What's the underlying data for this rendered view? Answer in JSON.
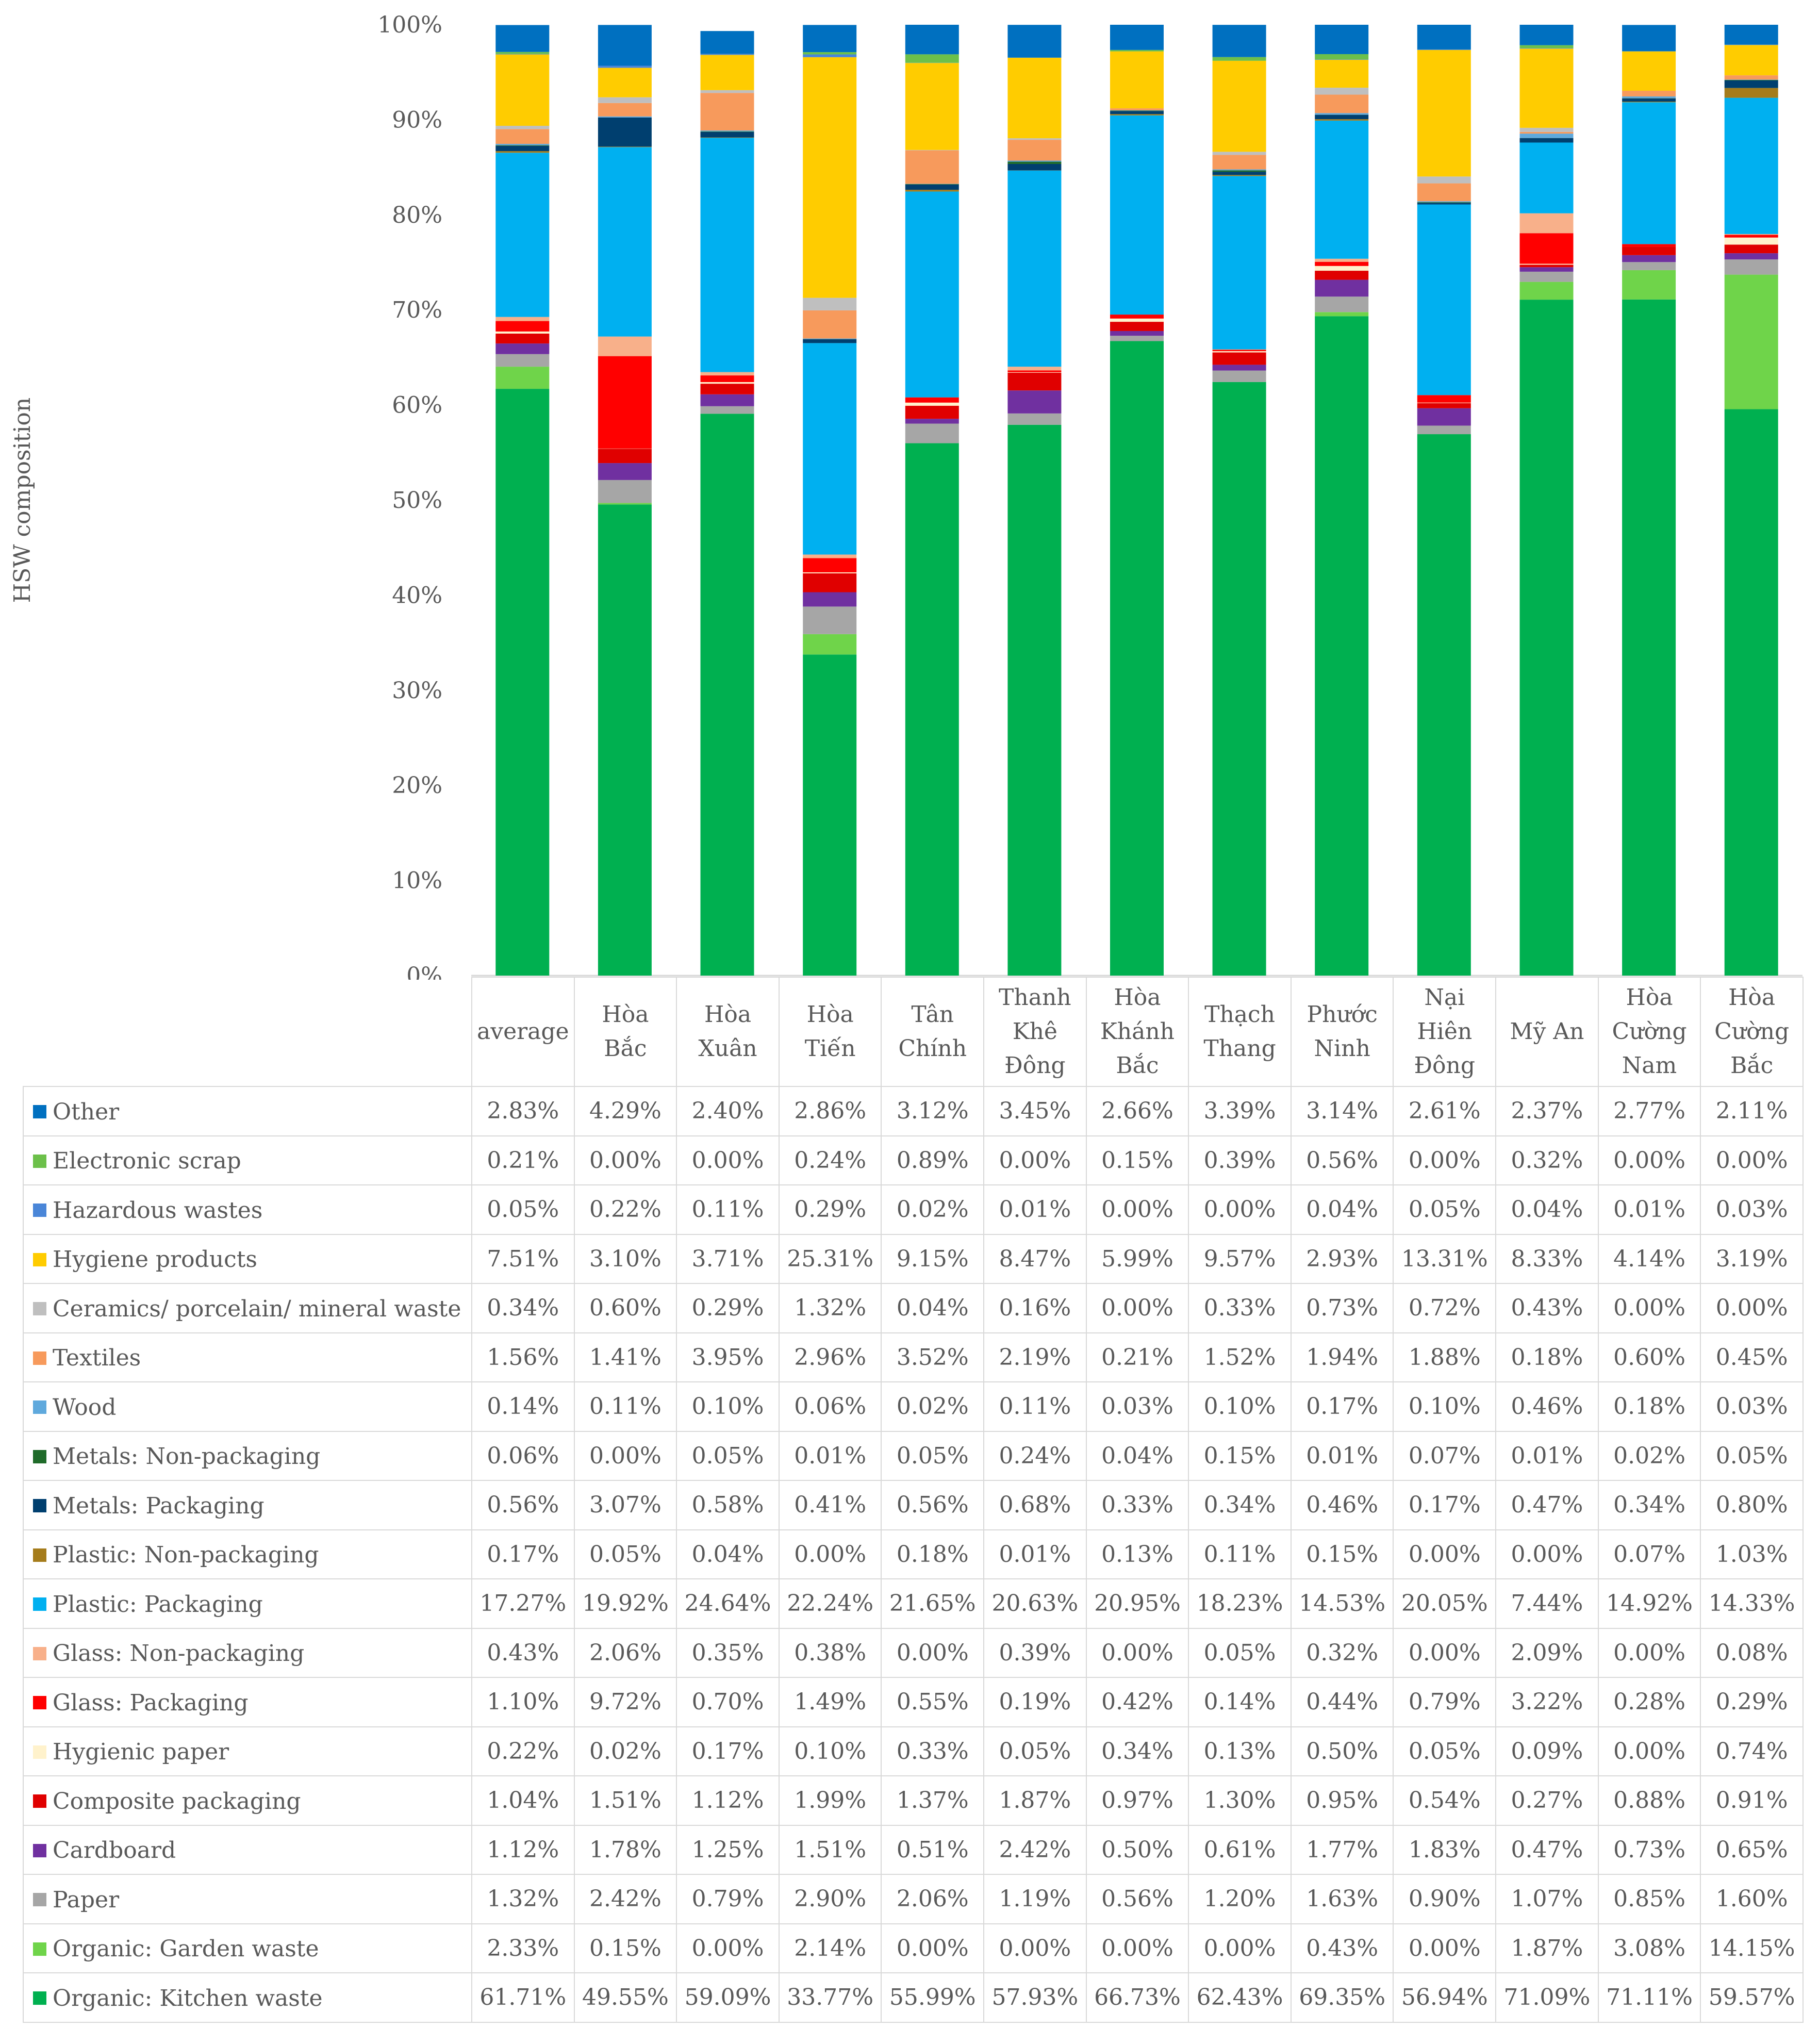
{
  "chart_data": {
    "type": "bar",
    "stacked": true,
    "ylabel": "HSW composition",
    "ylim": [
      0,
      100
    ],
    "yticks": [
      "0%",
      "10%",
      "20%",
      "30%",
      "40%",
      "50%",
      "60%",
      "70%",
      "80%",
      "90%",
      "100%"
    ],
    "categories": [
      [
        "average"
      ],
      [
        "Hòa",
        "Bắc"
      ],
      [
        "Hòa",
        "Xuân"
      ],
      [
        "Hòa",
        "Tiến"
      ],
      [
        "Tân",
        "Chính"
      ],
      [
        "Thanh",
        "Khê",
        "Đông"
      ],
      [
        "Hòa",
        "Khánh",
        "Bắc"
      ],
      [
        "Thạch",
        "Thang"
      ],
      [
        "Phước",
        "Ninh"
      ],
      [
        "Nại",
        "Hiên",
        "Đông"
      ],
      [
        "Mỹ An"
      ],
      [
        "Hòa",
        "Cường",
        "Nam"
      ],
      [
        "Hòa",
        "Cường",
        "Bắc"
      ]
    ],
    "series": [
      {
        "name": "Organic: Kitchen waste",
        "color": "#00b050",
        "values": [
          61.71,
          49.55,
          59.09,
          33.77,
          55.99,
          57.93,
          66.73,
          62.43,
          69.35,
          56.94,
          71.09,
          71.11,
          59.57
        ],
        "labels": [
          "61.71%",
          "49.55%",
          "59.09%",
          "33.77%",
          "55.99%",
          "57.93%",
          "66.73%",
          "62.43%",
          "69.35%",
          "56.94%",
          "71.09%",
          "71.11%",
          "59.57%"
        ]
      },
      {
        "name": "Organic: Garden waste",
        "color": "#6fd44a",
        "values": [
          2.33,
          0.15,
          0.0,
          2.14,
          0.0,
          0.0,
          0.0,
          0.0,
          0.43,
          0.0,
          1.87,
          3.08,
          14.15
        ],
        "labels": [
          "2.33%",
          "0.15%",
          "0.00%",
          "2.14%",
          "0.00%",
          "0.00%",
          "0.00%",
          "0.00%",
          "0.43%",
          "0.00%",
          "1.87%",
          "3.08%",
          "14.15%"
        ]
      },
      {
        "name": "Paper",
        "color": "#a6a6a6",
        "values": [
          1.32,
          2.42,
          0.79,
          2.9,
          2.06,
          1.19,
          0.56,
          1.2,
          1.63,
          0.9,
          1.07,
          0.85,
          1.6
        ],
        "labels": [
          "1.32%",
          "2.42%",
          "0.79%",
          "2.90%",
          "2.06%",
          "1.19%",
          "0.56%",
          "1.20%",
          "1.63%",
          "0.90%",
          "1.07%",
          "0.85%",
          "1.60%"
        ]
      },
      {
        "name": "Cardboard",
        "color": "#7030a0",
        "values": [
          1.12,
          1.78,
          1.25,
          1.51,
          0.51,
          2.42,
          0.5,
          0.61,
          1.77,
          1.83,
          0.47,
          0.73,
          0.65
        ],
        "labels": [
          "1.12%",
          "1.78%",
          "1.25%",
          "1.51%",
          "0.51%",
          "2.42%",
          "0.50%",
          "0.61%",
          "1.77%",
          "1.83%",
          "0.47%",
          "0.73%",
          "0.65%"
        ]
      },
      {
        "name": "Composite packaging",
        "color": "#e00000",
        "values": [
          1.04,
          1.51,
          1.12,
          1.99,
          1.37,
          1.87,
          0.97,
          1.3,
          0.95,
          0.54,
          0.27,
          0.88,
          0.91
        ],
        "labels": [
          "1.04%",
          "1.51%",
          "1.12%",
          "1.99%",
          "1.37%",
          "1.87%",
          "0.97%",
          "1.30%",
          "0.95%",
          "0.54%",
          "0.27%",
          "0.88%",
          "0.91%"
        ]
      },
      {
        "name": "Hygienic paper",
        "color": "#fff2cc",
        "values": [
          0.22,
          0.02,
          0.17,
          0.1,
          0.33,
          0.05,
          0.34,
          0.13,
          0.5,
          0.05,
          0.09,
          0.0,
          0.74
        ],
        "labels": [
          "0.22%",
          "0.02%",
          "0.17%",
          "0.10%",
          "0.33%",
          "0.05%",
          "0.34%",
          "0.13%",
          "0.50%",
          "0.05%",
          "0.09%",
          "0.00%",
          "0.74%"
        ]
      },
      {
        "name": "Glass: Packaging",
        "color": "#ff0000",
        "values": [
          1.1,
          9.72,
          0.7,
          1.49,
          0.55,
          0.19,
          0.42,
          0.14,
          0.44,
          0.79,
          3.22,
          0.28,
          0.29
        ],
        "labels": [
          "1.10%",
          "9.72%",
          "0.70%",
          "1.49%",
          "0.55%",
          "0.19%",
          "0.42%",
          "0.14%",
          "0.44%",
          "0.79%",
          "3.22%",
          "0.28%",
          "0.29%"
        ]
      },
      {
        "name": "Glass: Non-packaging",
        "color": "#f8b08a",
        "values": [
          0.43,
          2.06,
          0.35,
          0.38,
          0.0,
          0.39,
          0.0,
          0.05,
          0.32,
          0.0,
          2.09,
          0.0,
          0.08
        ],
        "labels": [
          "0.43%",
          "2.06%",
          "0.35%",
          "0.38%",
          "0.00%",
          "0.39%",
          "0.00%",
          "0.05%",
          "0.32%",
          "0.00%",
          "2.09%",
          "0.00%",
          "0.08%"
        ]
      },
      {
        "name": "Plastic: Packaging",
        "color": "#00b0f0",
        "values": [
          17.27,
          19.92,
          24.64,
          22.24,
          21.65,
          20.63,
          20.95,
          18.23,
          14.53,
          20.05,
          7.44,
          14.92,
          14.33
        ],
        "labels": [
          "17.27%",
          "19.92%",
          "24.64%",
          "22.24%",
          "21.65%",
          "20.63%",
          "20.95%",
          "18.23%",
          "14.53%",
          "20.05%",
          "7.44%",
          "14.92%",
          "14.33%"
        ]
      },
      {
        "name": "Plastic: Non-packaging",
        "color": "#a57c1b",
        "values": [
          0.17,
          0.05,
          0.04,
          0.0,
          0.18,
          0.01,
          0.13,
          0.11,
          0.15,
          0.0,
          0.0,
          0.07,
          1.03
        ],
        "labels": [
          "0.17%",
          "0.05%",
          "0.04%",
          "0.00%",
          "0.18%",
          "0.01%",
          "0.13%",
          "0.11%",
          "0.15%",
          "0.00%",
          "0.00%",
          "0.07%",
          "1.03%"
        ]
      },
      {
        "name": "Metals: Packaging",
        "color": "#003f6f",
        "values": [
          0.56,
          3.07,
          0.58,
          0.41,
          0.56,
          0.68,
          0.33,
          0.34,
          0.46,
          0.17,
          0.47,
          0.34,
          0.8
        ],
        "labels": [
          "0.56%",
          "3.07%",
          "0.58%",
          "0.41%",
          "0.56%",
          "0.68%",
          "0.33%",
          "0.34%",
          "0.46%",
          "0.17%",
          "0.47%",
          "0.34%",
          "0.80%"
        ]
      },
      {
        "name": "Metals: Non-packaging",
        "color": "#1f6b2a",
        "values": [
          0.06,
          0.0,
          0.05,
          0.01,
          0.05,
          0.24,
          0.04,
          0.15,
          0.01,
          0.07,
          0.01,
          0.02,
          0.05
        ],
        "labels": [
          "0.06%",
          "0.00%",
          "0.05%",
          "0.01%",
          "0.05%",
          "0.24%",
          "0.04%",
          "0.15%",
          "0.01%",
          "0.07%",
          "0.01%",
          "0.02%",
          "0.05%"
        ]
      },
      {
        "name": "Wood",
        "color": "#5fa9dd",
        "values": [
          0.14,
          0.11,
          0.1,
          0.06,
          0.02,
          0.11,
          0.03,
          0.1,
          0.17,
          0.1,
          0.46,
          0.18,
          0.03
        ],
        "labels": [
          "0.14%",
          "0.11%",
          "0.10%",
          "0.06%",
          "0.02%",
          "0.11%",
          "0.03%",
          "0.10%",
          "0.17%",
          "0.10%",
          "0.46%",
          "0.18%",
          "0.03%"
        ]
      },
      {
        "name": "Textiles",
        "color": "#f79a5c",
        "values": [
          1.56,
          1.41,
          3.95,
          2.96,
          3.52,
          2.19,
          0.21,
          1.52,
          1.94,
          1.88,
          0.18,
          0.6,
          0.45
        ],
        "labels": [
          "1.56%",
          "1.41%",
          "3.95%",
          "2.96%",
          "3.52%",
          "2.19%",
          "0.21%",
          "1.52%",
          "1.94%",
          "1.88%",
          "0.18%",
          "0.60%",
          "0.45%"
        ]
      },
      {
        "name": "Ceramics/ porcelain/ mineral waste",
        "color": "#bfbfbf",
        "values": [
          0.34,
          0.6,
          0.29,
          1.32,
          0.04,
          0.16,
          0.0,
          0.33,
          0.73,
          0.72,
          0.43,
          0.0,
          0.0
        ],
        "labels": [
          "0.34%",
          "0.60%",
          "0.29%",
          "1.32%",
          "0.04%",
          "0.16%",
          "0.00%",
          "0.33%",
          "0.73%",
          "0.72%",
          "0.43%",
          "0.00%",
          "0.00%"
        ]
      },
      {
        "name": "Hygiene products",
        "color": "#ffcc00",
        "values": [
          7.51,
          3.1,
          3.71,
          25.31,
          9.15,
          8.47,
          5.99,
          9.57,
          2.93,
          13.31,
          8.33,
          4.14,
          3.19
        ],
        "labels": [
          "7.51%",
          "3.10%",
          "3.71%",
          "25.31%",
          "9.15%",
          "8.47%",
          "5.99%",
          "9.57%",
          "2.93%",
          "13.31%",
          "8.33%",
          "4.14%",
          "3.19%"
        ]
      },
      {
        "name": "Hazardous wastes",
        "color": "#4a86d8",
        "values": [
          0.05,
          0.22,
          0.11,
          0.29,
          0.02,
          0.01,
          0.0,
          0.0,
          0.04,
          0.05,
          0.04,
          0.01,
          0.03
        ],
        "labels": [
          "0.05%",
          "0.22%",
          "0.11%",
          "0.29%",
          "0.02%",
          "0.01%",
          "0.00%",
          "0.00%",
          "0.04%",
          "0.05%",
          "0.04%",
          "0.01%",
          "0.03%"
        ]
      },
      {
        "name": "Electronic scrap",
        "color": "#6cc04a",
        "values": [
          0.21,
          0.0,
          0.0,
          0.24,
          0.89,
          0.0,
          0.15,
          0.39,
          0.56,
          0.0,
          0.32,
          0.0,
          0.0
        ],
        "labels": [
          "0.21%",
          "0.00%",
          "0.00%",
          "0.24%",
          "0.89%",
          "0.00%",
          "0.15%",
          "0.39%",
          "0.56%",
          "0.00%",
          "0.32%",
          "0.00%",
          "0.00%"
        ]
      },
      {
        "name": "Other",
        "color": "#0070c0",
        "values": [
          2.83,
          4.29,
          2.4,
          2.86,
          3.12,
          3.45,
          2.66,
          3.39,
          3.14,
          2.61,
          2.37,
          2.77,
          2.11
        ],
        "labels": [
          "2.83%",
          "4.29%",
          "2.40%",
          "2.86%",
          "3.12%",
          "3.45%",
          "2.66%",
          "3.39%",
          "3.14%",
          "2.61%",
          "2.37%",
          "2.77%",
          "2.11%"
        ]
      }
    ]
  }
}
